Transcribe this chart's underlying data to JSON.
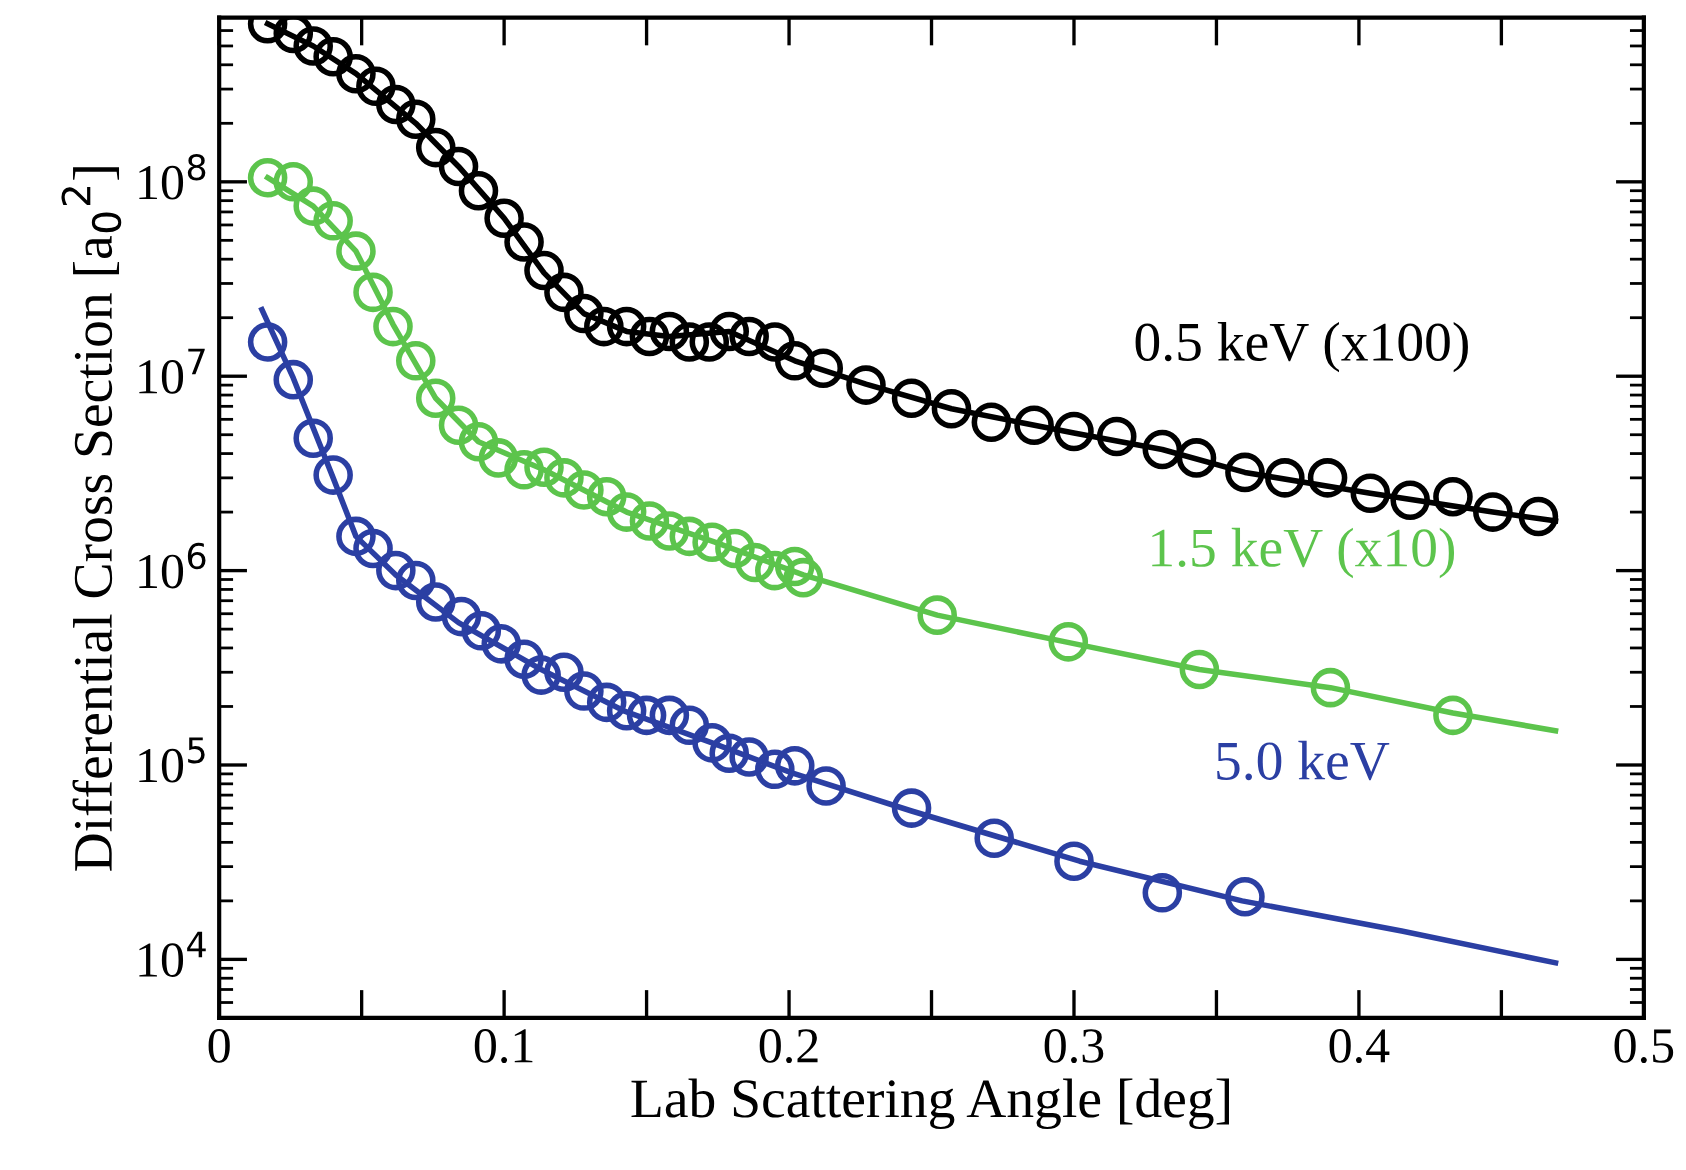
{
  "chart_data": {
    "type": "scatter",
    "xlabel": "Lab Scattering Angle [deg]",
    "ylabel": "Differential Cross Section [a$_{0}$$^{2}$]",
    "log": "y",
    "grid": false,
    "legend": false,
    "xlim": [
      0,
      0.5
    ],
    "xticks": [
      0,
      {
        "value": 0.05,
        "label": null
      },
      0.1,
      {
        "value": 0.15,
        "label": null
      },
      0.2,
      {
        "value": 0.25,
        "label": null
      },
      0.3,
      {
        "value": 0.35,
        "label": null
      },
      0.4,
      {
        "value": 0.45,
        "label": null
      },
      0.5
    ],
    "ylim": [
      5000,
      700000000
    ],
    "yticks": [
      {
        "value": 10000,
        "label": "10$^{4}$"
      },
      {
        "value": 100000,
        "label": "10$^{5}$"
      },
      {
        "value": 1000000,
        "label": "10$^{6}$"
      },
      {
        "value": 10000000,
        "label": "10$^{7}$"
      },
      {
        "value": 100000000,
        "label": "10$^{8}$"
      }
    ],
    "series": [
      {
        "type": "line",
        "marker": "none",
        "line_style": "solid",
        "color": "#000000",
        "x": [
          0.017,
          0.033,
          0.048,
          0.069,
          0.084,
          0.1,
          0.114,
          0.128,
          0.143,
          0.158,
          0.179,
          0.202,
          0.227,
          0.257,
          0.3,
          0.331,
          0.36,
          0.404,
          0.447,
          0.469
        ],
        "values": [
          650000000.0,
          500000000.0,
          360000000.0,
          200000000.0,
          120000000.0,
          65000000.0,
          34000000.0,
          21000000.0,
          17000000.0,
          16000000.0,
          17000000.0,
          12000000.0,
          9100000.0,
          6800000.0,
          5100000.0,
          4200000.0,
          3200000.0,
          2500000.0,
          2000000.0,
          1800000.0
        ]
      },
      {
        "marker": "circle",
        "name": "0.5 keV (x100)",
        "color": "#000000",
        "x": [
          0.017,
          0.026,
          0.033,
          0.04,
          0.048,
          0.055,
          0.062,
          0.069,
          0.076,
          0.084,
          0.091,
          0.1,
          0.107,
          0.114,
          0.121,
          0.128,
          0.135,
          0.143,
          0.151,
          0.158,
          0.165,
          0.172,
          0.179,
          0.186,
          0.195,
          0.202,
          0.212,
          0.227,
          0.243,
          0.257,
          0.271,
          0.286,
          0.3,
          0.315,
          0.331,
          0.343,
          0.36,
          0.374,
          0.389,
          0.404,
          0.418,
          0.433,
          0.447,
          0.463
        ],
        "values": [
          650000000.0,
          580000000.0,
          500000000.0,
          440000000.0,
          360000000.0,
          310000000.0,
          250000000.0,
          210000000.0,
          150000000.0,
          120000000.0,
          90000000.0,
          65000000.0,
          49000000.0,
          35000000.0,
          27000000.0,
          21000000.0,
          18000000.0,
          18000000.0,
          16000000.0,
          17000000.0,
          15000000.0,
          15000000.0,
          17000000.0,
          16000000.0,
          15000000.0,
          12000000.0,
          11000000.0,
          9000000.0,
          7700000.0,
          6800000.0,
          5800000.0,
          5600000.0,
          5200000.0,
          4900000.0,
          4200000.0,
          3800000.0,
          3200000.0,
          3000000.0,
          3000000.0,
          2500000.0,
          2300000.0,
          2400000.0,
          2000000.0,
          1900000.0
        ]
      },
      {
        "type": "line",
        "marker": "none",
        "line_style": "solid",
        "color": "#5cc44c",
        "x": [
          0.017,
          0.033,
          0.048,
          0.061,
          0.076,
          0.091,
          0.114,
          0.143,
          0.174,
          0.205,
          0.252,
          0.297,
          0.344,
          0.39,
          0.433,
          0.469
        ],
        "values": [
          105000000.0,
          75000000.0,
          44000000.0,
          18500000.0,
          7700000.0,
          4600000.0,
          3300000.0,
          2000000.0,
          1400000.0,
          950000.0,
          590000.0,
          430000.0,
          310000.0,
          250000.0,
          185000.0,
          150000.0
        ]
      },
      {
        "marker": "circle",
        "name": "1.5 keV (x10)",
        "color": "#5cc44c",
        "x": [
          0.017,
          0.026,
          0.033,
          0.04,
          0.048,
          0.054,
          0.061,
          0.069,
          0.076,
          0.084,
          0.091,
          0.098,
          0.107,
          0.114,
          0.121,
          0.128,
          0.136,
          0.143,
          0.151,
          0.158,
          0.165,
          0.173,
          0.181,
          0.188,
          0.195,
          0.202,
          0.205,
          0.252,
          0.298,
          0.344,
          0.39,
          0.433
        ],
        "values": [
          105000000.0,
          100000000.0,
          75000000.0,
          63000000.0,
          44000000.0,
          27000000.0,
          18000000.0,
          12000000.0,
          7700000.0,
          5600000.0,
          4600000.0,
          3800000.0,
          3300000.0,
          3400000.0,
          3000000.0,
          2600000.0,
          2400000.0,
          2000000.0,
          1800000.0,
          1600000.0,
          1500000.0,
          1400000.0,
          1300000.0,
          1100000.0,
          1000000.0,
          1050000.0,
          920000.0,
          590000.0,
          430000.0,
          310000.0,
          250000.0,
          180000.0
        ]
      },
      {
        "type": "line",
        "marker": "none",
        "line_style": "solid",
        "color": "#2b3fa3",
        "x": [
          0.015,
          0.026,
          0.04,
          0.048,
          0.062,
          0.084,
          0.113,
          0.142,
          0.173,
          0.201,
          0.243,
          0.302,
          0.359,
          0.415,
          0.469
        ],
        "values": [
          22000000.0,
          9800000.0,
          3000000.0,
          1500000.0,
          950000.0,
          540000.0,
          310000.0,
          190000.0,
          130000.0,
          91000.0,
          58000.0,
          32000.0,
          20000.0,
          14000.0,
          9600.0
        ]
      },
      {
        "marker": "circle",
        "name": "5.0 keV",
        "color": "#2b3fa3",
        "x": [
          0.017,
          0.026,
          0.033,
          0.04,
          0.048,
          0.054,
          0.062,
          0.069,
          0.076,
          0.085,
          0.092,
          0.099,
          0.107,
          0.113,
          0.121,
          0.128,
          0.136,
          0.143,
          0.15,
          0.158,
          0.165,
          0.173,
          0.179,
          0.186,
          0.195,
          0.202,
          0.213,
          0.243,
          0.272,
          0.3,
          0.331,
          0.36
        ],
        "values": [
          15000000.0,
          9600000.0,
          4800000.0,
          3100000.0,
          1500000.0,
          1300000.0,
          1000000.0,
          890000.0,
          690000.0,
          580000.0,
          490000.0,
          420000.0,
          350000.0,
          290000.0,
          300000.0,
          240000.0,
          210000.0,
          190000.0,
          180000.0,
          180000.0,
          160000.0,
          130000.0,
          115000.0,
          110000.0,
          95000.0,
          99000.0,
          78000.0,
          60000.0,
          42000.0,
          32000.0,
          22000.0,
          21000.0
        ]
      }
    ]
  }
}
